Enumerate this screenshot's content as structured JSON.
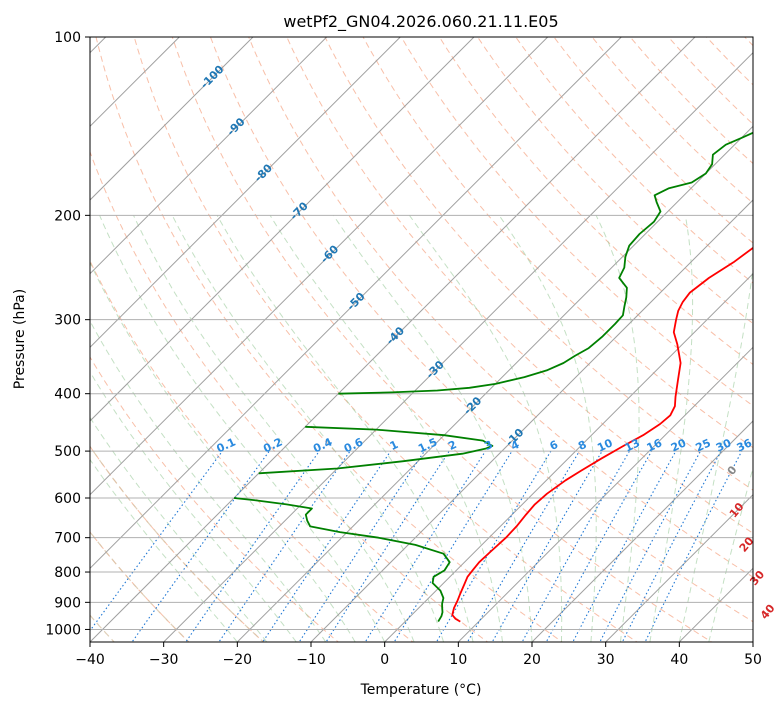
{
  "chart_data": {
    "type": "line",
    "title": "wetPf2_GN04.2026.060.21.11.E05",
    "xlabel": "Temperature (°C)",
    "ylabel": "Pressure (hPa)",
    "xlim": [
      -40,
      50
    ],
    "ylim": [
      1050,
      100
    ],
    "y_scale": "log",
    "grid": true,
    "x_ticks": [
      -40,
      -30,
      -20,
      -10,
      0,
      10,
      20,
      30,
      40,
      50
    ],
    "y_ticks": [
      100,
      200,
      300,
      400,
      500,
      600,
      700,
      800,
      900,
      1000
    ],
    "isotherm_labels": [
      {
        "text": "-100",
        "t": -100,
        "p": 117
      },
      {
        "text": "-90",
        "t": -90,
        "p": 142
      },
      {
        "text": "-80",
        "t": -80,
        "p": 170
      },
      {
        "text": "-70",
        "t": -70,
        "p": 197
      },
      {
        "text": "-60",
        "t": -60,
        "p": 233
      },
      {
        "text": "-50",
        "t": -50,
        "p": 280
      },
      {
        "text": "-40",
        "t": -40,
        "p": 320
      },
      {
        "text": "-30",
        "t": -30,
        "p": 365
      },
      {
        "text": "-20",
        "t": -20,
        "p": 420
      },
      {
        "text": "-10",
        "t": -10,
        "p": 475
      }
    ],
    "mixing_ratio_labels": [
      "0.1",
      "0.2",
      "0.4",
      "0.6",
      "1",
      "1.5",
      "2",
      "3",
      "4",
      "6",
      "8",
      "10",
      "13",
      "16",
      "20",
      "25",
      "30",
      "36"
    ],
    "mixing_ratio_values": [
      0.1,
      0.2,
      0.4,
      0.6,
      1,
      1.5,
      2,
      3,
      4,
      6,
      8,
      10,
      13,
      16,
      20,
      25,
      30,
      36
    ],
    "moist_adiabat_labels": [
      {
        "text": "0",
        "t": 24,
        "p": 540,
        "color": "#888888"
      },
      {
        "text": "10",
        "t": 30,
        "p": 630,
        "color": "#d62728"
      },
      {
        "text": "20",
        "t": 36,
        "p": 720,
        "color": "#d62728"
      },
      {
        "text": "30",
        "t": 42,
        "p": 820,
        "color": "#d62728"
      },
      {
        "text": "40",
        "t": 48,
        "p": 935,
        "color": "#d62728"
      }
    ],
    "series": [
      {
        "color": "#ff0000",
        "points": [
          [
            7.5,
            970
          ],
          [
            6.5,
            960
          ],
          [
            5.5,
            945
          ],
          [
            4.8,
            920
          ],
          [
            4.3,
            895
          ],
          [
            3.7,
            870
          ],
          [
            3.0,
            840
          ],
          [
            2.4,
            815
          ],
          [
            2.2,
            795
          ],
          [
            2.0,
            770
          ],
          [
            2.1,
            740
          ],
          [
            2.3,
            700
          ],
          [
            2.2,
            670
          ],
          [
            1.9,
            640
          ],
          [
            1.7,
            615
          ],
          [
            1.9,
            590
          ],
          [
            2.6,
            560
          ],
          [
            3.4,
            540
          ],
          [
            4.5,
            515
          ],
          [
            5.8,
            490
          ],
          [
            7.0,
            470
          ],
          [
            7.8,
            450
          ],
          [
            8.0,
            435
          ],
          [
            7.4,
            420
          ],
          [
            6.2,
            405
          ],
          [
            4.3,
            380
          ],
          [
            2.3,
            355
          ],
          [
            -0.7,
            330
          ],
          [
            -2.8,
            315
          ],
          [
            -4.2,
            300
          ],
          [
            -5.1,
            290
          ],
          [
            -5.7,
            280
          ],
          [
            -6.0,
            270
          ],
          [
            -5.4,
            255
          ],
          [
            -4.2,
            240
          ],
          [
            -3.4,
            225
          ],
          [
            -3.8,
            215
          ],
          [
            -3.0,
            207
          ],
          [
            -2.0,
            202
          ],
          [
            0.5,
            197
          ],
          [
            4.6,
            190
          ],
          [
            7.1,
            182
          ],
          [
            8.0,
            176
          ],
          [
            9.2,
            170
          ],
          [
            10.3,
            162
          ],
          [
            11.1,
            155
          ],
          [
            12.0,
            148
          ],
          [
            13.1,
            140
          ],
          [
            14.8,
            133
          ],
          [
            16.3,
            128
          ],
          [
            17.6,
            122
          ],
          [
            18.9,
            117
          ],
          [
            19.6,
            112
          ],
          [
            20.6,
            107
          ],
          [
            21.5,
            103
          ],
          [
            22.4,
            100
          ]
        ]
      },
      {
        "color": "#008000",
        "points": [
          [
            4.5,
            970
          ],
          [
            4.2,
            950
          ],
          [
            3.8,
            935
          ],
          [
            3.2,
            920
          ],
          [
            2.6,
            905
          ],
          [
            2.0,
            885
          ],
          [
            0.6,
            860
          ],
          [
            -1.5,
            835
          ],
          [
            -2.2,
            815
          ],
          [
            -1.6,
            795
          ],
          [
            -2.0,
            770
          ],
          [
            -4.0,
            745
          ],
          [
            -9.0,
            720
          ],
          [
            -15.0,
            700
          ],
          [
            -21.0,
            685
          ],
          [
            -25.8,
            670
          ],
          [
            -27.0,
            655
          ],
          [
            -28.0,
            640
          ],
          [
            -28.0,
            625
          ],
          [
            -32.0,
            615
          ],
          [
            -37.0,
            605
          ],
          [
            -40.0,
            600
          ]
        ]
      },
      {
        "color": "#008000",
        "points": [
          [
            -40.0,
            545
          ],
          [
            -30.0,
            535
          ],
          [
            -22.0,
            520
          ],
          [
            -15.0,
            505
          ],
          [
            -12.5,
            495
          ],
          [
            -12.0,
            490
          ],
          [
            -14.0,
            480
          ],
          [
            -20.0,
            470
          ],
          [
            -30.0,
            460
          ],
          [
            -40.0,
            455
          ]
        ]
      },
      {
        "color": "#008000",
        "points": [
          [
            -40.0,
            400
          ],
          [
            -33.0,
            398
          ],
          [
            -27.0,
            395
          ],
          [
            -23.0,
            391
          ],
          [
            -20.0,
            385
          ],
          [
            -17.0,
            375
          ],
          [
            -14.8,
            365
          ],
          [
            -13.6,
            355
          ],
          [
            -13.0,
            345
          ],
          [
            -12.2,
            335
          ],
          [
            -11.9,
            320
          ],
          [
            -11.9,
            305
          ],
          [
            -12.0,
            295
          ],
          [
            -13.0,
            285
          ],
          [
            -14.0,
            275
          ],
          [
            -15.2,
            265
          ],
          [
            -17.6,
            255
          ],
          [
            -18.3,
            245
          ],
          [
            -19.6,
            235
          ],
          [
            -20.6,
            225
          ],
          [
            -20.8,
            215
          ],
          [
            -20.5,
            205
          ],
          [
            -21.0,
            197
          ],
          [
            -22.8,
            190
          ],
          [
            -24.0,
            185
          ],
          [
            -23.0,
            180
          ],
          [
            -20.7,
            176
          ],
          [
            -20.0,
            170
          ],
          [
            -20.4,
            164
          ],
          [
            -21.6,
            158
          ],
          [
            -21.2,
            152
          ],
          [
            -20.0,
            148
          ],
          [
            -18.8,
            144
          ],
          [
            -17.0,
            138
          ],
          [
            -16.4,
            132
          ],
          [
            -16.0,
            126
          ],
          [
            -15.2,
            120
          ],
          [
            -14.0,
            115
          ],
          [
            -12.4,
            110
          ],
          [
            -10.9,
            105
          ],
          [
            -9.4,
            100
          ]
        ]
      }
    ]
  }
}
